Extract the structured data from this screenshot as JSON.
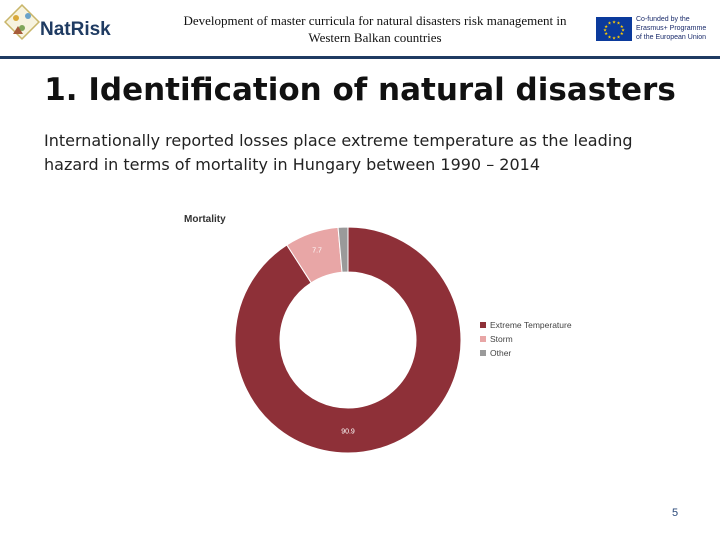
{
  "header": {
    "logo_text": "NatRisk",
    "line1": "Development of master curricula for natural disasters risk management in",
    "line2": "Western Balkan countries",
    "eu_line1": "Co-funded by the",
    "eu_line2": "Erasmus+ Programme",
    "eu_line3": "of the European Union"
  },
  "slide": {
    "title": "1. Identification of natural disasters",
    "body_line1": "Internationally reported losses place extreme temperature as the leading",
    "body_line2": "hazard in terms of mortality in Hungary between 1990 – 2014",
    "page_number": "5"
  },
  "chart_data": {
    "type": "pie",
    "title": "Mortality",
    "categories": [
      "Extreme Temperature",
      "Storm",
      "Other"
    ],
    "values": [
      90.9,
      7.7,
      1.4
    ],
    "data_labels": [
      "90.9",
      "7.7",
      ""
    ],
    "colors": [
      "#8e3038",
      "#e8a6a6",
      "#9a9a9a"
    ],
    "donut": true,
    "legend_position": "right"
  }
}
